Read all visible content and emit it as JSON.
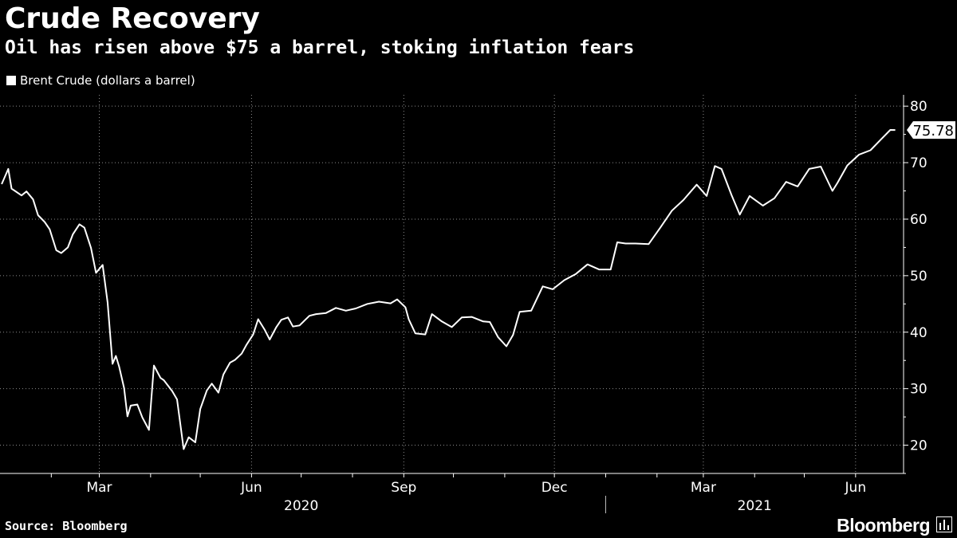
{
  "chart_data": {
    "type": "line",
    "title": "Crude Recovery",
    "subtitle": "Oil has risen above $75 a barrel, stoking inflation fears",
    "source": "Source: Bloomberg",
    "brand": "Bloomberg",
    "last_value_label": "75.78",
    "colors": {
      "background": "#000000",
      "line": "#ffffff",
      "grid": "#8c8c8c",
      "axis": "#ffffff"
    },
    "grid": true,
    "legend_position": "top-left",
    "y_axis_position": "right",
    "ylim": [
      15,
      82
    ],
    "yticks": [
      20,
      30,
      40,
      50,
      60,
      70,
      80
    ],
    "xlim": [
      "2020-01-01",
      "2021-06-30"
    ],
    "x_month_ticks": [
      {
        "date": "2020-02-01",
        "label": ""
      },
      {
        "date": "2020-03-01",
        "label": "Mar"
      },
      {
        "date": "2020-04-01",
        "label": ""
      },
      {
        "date": "2020-05-01",
        "label": ""
      },
      {
        "date": "2020-06-01",
        "label": "Jun"
      },
      {
        "date": "2020-07-01",
        "label": ""
      },
      {
        "date": "2020-08-01",
        "label": ""
      },
      {
        "date": "2020-09-01",
        "label": "Sep"
      },
      {
        "date": "2020-10-01",
        "label": ""
      },
      {
        "date": "2020-11-01",
        "label": ""
      },
      {
        "date": "2020-12-01",
        "label": "Dec"
      },
      {
        "date": "2021-01-01",
        "label": ""
      },
      {
        "date": "2021-02-01",
        "label": ""
      },
      {
        "date": "2021-03-01",
        "label": "Mar"
      },
      {
        "date": "2021-04-01",
        "label": ""
      },
      {
        "date": "2021-05-01",
        "label": ""
      },
      {
        "date": "2021-06-01",
        "label": "Jun"
      }
    ],
    "x_gridlines": [
      "2020-03-01",
      "2020-06-01",
      "2020-09-01",
      "2020-12-01",
      "2021-03-01",
      "2021-06-01"
    ],
    "year_labels": [
      {
        "label": "2020",
        "date": "2020-07-01"
      },
      {
        "label": "2021",
        "date": "2021-04-01"
      }
    ],
    "year_separator": "2021-01-01",
    "series": [
      {
        "name": "Brent Crude (dollars a barrel)",
        "x": [
          "2020-01-02",
          "2020-01-06",
          "2020-01-08",
          "2020-01-10",
          "2020-01-14",
          "2020-01-17",
          "2020-01-21",
          "2020-01-24",
          "2020-01-28",
          "2020-01-31",
          "2020-02-04",
          "2020-02-07",
          "2020-02-11",
          "2020-02-14",
          "2020-02-18",
          "2020-02-21",
          "2020-02-25",
          "2020-02-28",
          "2020-03-03",
          "2020-03-06",
          "2020-03-09",
          "2020-03-11",
          "2020-03-13",
          "2020-03-16",
          "2020-03-18",
          "2020-03-20",
          "2020-03-24",
          "2020-03-27",
          "2020-03-31",
          "2020-04-03",
          "2020-04-07",
          "2020-04-09",
          "2020-04-14",
          "2020-04-17",
          "2020-04-21",
          "2020-04-24",
          "2020-04-28",
          "2020-05-01",
          "2020-05-05",
          "2020-05-08",
          "2020-05-12",
          "2020-05-15",
          "2020-05-19",
          "2020-05-22",
          "2020-05-26",
          "2020-05-29",
          "2020-06-02",
          "2020-06-05",
          "2020-06-09",
          "2020-06-12",
          "2020-06-16",
          "2020-06-19",
          "2020-06-23",
          "2020-06-26",
          "2020-06-30",
          "2020-07-06",
          "2020-07-10",
          "2020-07-16",
          "2020-07-22",
          "2020-07-28",
          "2020-08-03",
          "2020-08-10",
          "2020-08-17",
          "2020-08-24",
          "2020-08-28",
          "2020-09-02",
          "2020-09-04",
          "2020-09-08",
          "2020-09-14",
          "2020-09-18",
          "2020-09-24",
          "2020-09-30",
          "2020-10-06",
          "2020-10-12",
          "2020-10-19",
          "2020-10-23",
          "2020-10-28",
          "2020-11-02",
          "2020-11-06",
          "2020-11-10",
          "2020-11-17",
          "2020-11-24",
          "2020-11-30",
          "2020-12-07",
          "2020-12-14",
          "2020-12-21",
          "2020-12-28",
          "2021-01-04",
          "2021-01-08",
          "2021-01-13",
          "2021-01-19",
          "2021-01-27",
          "2021-02-03",
          "2021-02-10",
          "2021-02-17",
          "2021-02-25",
          "2021-03-03",
          "2021-03-08",
          "2021-03-12",
          "2021-03-18",
          "2021-03-23",
          "2021-03-29",
          "2021-04-06",
          "2021-04-13",
          "2021-04-20",
          "2021-04-27",
          "2021-05-04",
          "2021-05-11",
          "2021-05-18",
          "2021-05-21",
          "2021-05-27",
          "2021-06-03",
          "2021-06-10",
          "2021-06-16",
          "2021-06-22",
          "2021-06-25"
        ],
        "y": [
          66.2,
          68.9,
          65.4,
          65.0,
          64.2,
          64.9,
          63.5,
          60.7,
          59.5,
          58.2,
          54.5,
          54.0,
          55.0,
          57.3,
          59.1,
          58.5,
          54.9,
          50.5,
          51.9,
          45.3,
          34.4,
          35.8,
          33.9,
          30.1,
          25.1,
          27.0,
          27.2,
          24.9,
          22.7,
          34.1,
          31.9,
          31.5,
          29.6,
          28.1,
          19.3,
          21.4,
          20.5,
          26.4,
          29.7,
          30.9,
          29.3,
          32.5,
          34.6,
          35.1,
          36.2,
          37.8,
          39.6,
          42.3,
          40.4,
          38.7,
          40.9,
          42.2,
          42.6,
          41.0,
          41.2,
          42.9,
          43.2,
          43.4,
          44.3,
          43.8,
          44.2,
          45.0,
          45.4,
          45.1,
          45.8,
          44.4,
          42.3,
          39.8,
          39.6,
          43.2,
          41.9,
          40.9,
          42.6,
          42.7,
          41.9,
          41.8,
          39.1,
          37.5,
          39.5,
          43.6,
          43.8,
          48.1,
          47.6,
          49.2,
          50.3,
          52.0,
          51.1,
          51.1,
          55.9,
          55.7,
          55.7,
          55.6,
          58.5,
          61.5,
          63.4,
          66.1,
          64.1,
          69.4,
          68.9,
          64.3,
          60.8,
          64.1,
          62.4,
          63.7,
          66.6,
          65.8,
          68.9,
          69.3,
          65.0,
          66.4,
          69.5,
          71.4,
          72.2,
          74.0,
          75.8,
          75.78
        ]
      }
    ]
  }
}
